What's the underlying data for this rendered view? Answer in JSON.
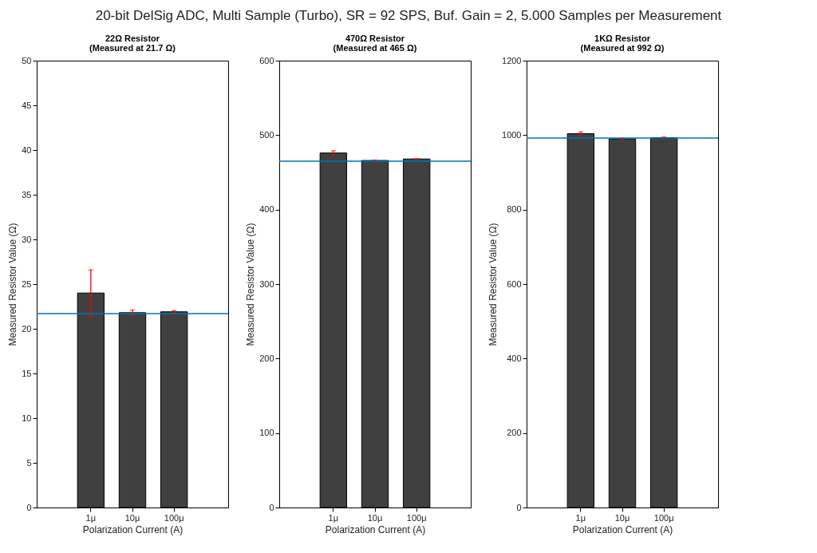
{
  "chart_data": [
    {
      "type": "bar",
      "title": "22Ω Resistor",
      "subtitle": "(Measured at 21.7 Ω)",
      "annotations": [
        "20-bit DelSig ADC, Multi Sample (Turbo), SR = 92 SPS, Buf. Gain = 2, 5.000 Samples per Measurement"
      ],
      "xlabel": "Polarization Current (A)",
      "ylabel": "Measured Resistor Value (Ω)",
      "categories": [
        "1μ",
        "10μ",
        "100μ"
      ],
      "values": [
        24.0,
        21.8,
        21.9
      ],
      "errors": [
        2.6,
        0.3,
        0.15
      ],
      "color": "#404040",
      "ylim": [
        0,
        50
      ],
      "yticks": [
        0,
        5,
        10,
        15,
        20,
        25,
        30,
        35,
        40,
        45,
        50
      ],
      "ref_lines": [
        {
          "axis": "y",
          "value": 21.7,
          "color": "#0072bd"
        }
      ]
    },
    {
      "type": "bar",
      "title": "470Ω Resistor",
      "subtitle": "(Measured at 465 Ω)",
      "xlabel": "Polarization Current (A)",
      "ylabel": "Measured Resistor Value (Ω)",
      "categories": [
        "1μ",
        "10μ",
        "100μ"
      ],
      "values": [
        476,
        466,
        468
      ],
      "errors": [
        3,
        0.5,
        0.5
      ],
      "color": "#404040",
      "ylim": [
        0,
        600
      ],
      "yticks": [
        0,
        100,
        200,
        300,
        400,
        500,
        600
      ],
      "ref_lines": [
        {
          "axis": "y",
          "value": 465,
          "color": "#0072bd"
        }
      ]
    },
    {
      "type": "bar",
      "title": "1KΩ Resistor",
      "subtitle": "(Measured at 992 Ω)",
      "xlabel": "Polarization Current (A)",
      "ylabel": "Measured Resistor Value (Ω)",
      "categories": [
        "1μ",
        "10μ",
        "100μ"
      ],
      "values": [
        1004,
        990,
        993
      ],
      "errors": [
        4.5,
        2,
        2
      ],
      "color": "#404040",
      "ylim": [
        0,
        1200
      ],
      "yticks": [
        0,
        200,
        400,
        600,
        800,
        1000,
        1200
      ],
      "ref_lines": [
        {
          "axis": "y",
          "value": 992,
          "color": "#0072bd"
        }
      ]
    }
  ]
}
